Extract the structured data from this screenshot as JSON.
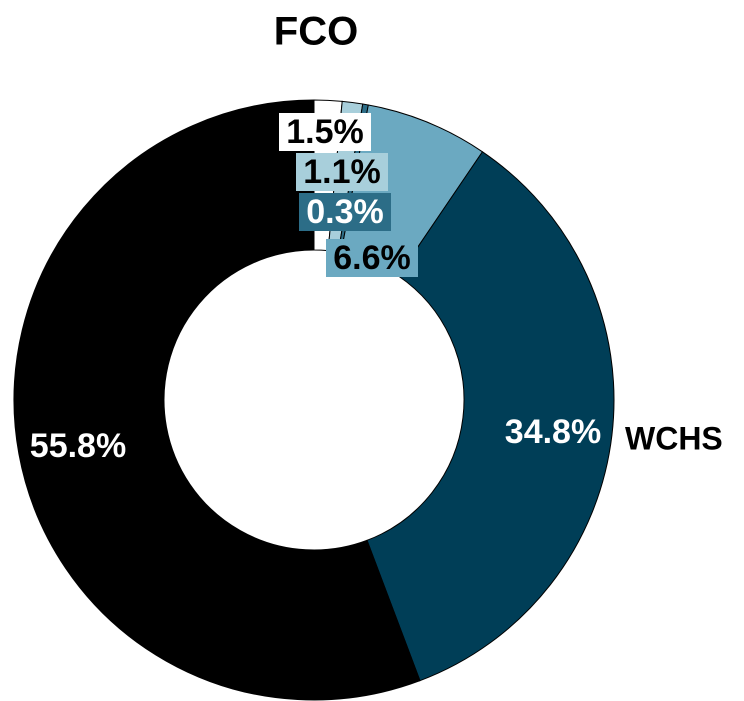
{
  "chart_data": {
    "type": "pie",
    "title": "FCO",
    "categories": [
      null,
      null,
      null,
      null,
      "WCHS",
      null
    ],
    "values": [
      1.5,
      1.1,
      0.3,
      6.6,
      34.8,
      55.8
    ],
    "value_labels": [
      "1.5%",
      "1.1%",
      "0.3%",
      "6.6%",
      "34.8%",
      "55.8%"
    ],
    "colors": [
      "#ffffff",
      "#a8cfdb",
      "#2c6d87",
      "#6ba9c1",
      "#003e57",
      "#000000"
    ],
    "donut": true
  }
}
